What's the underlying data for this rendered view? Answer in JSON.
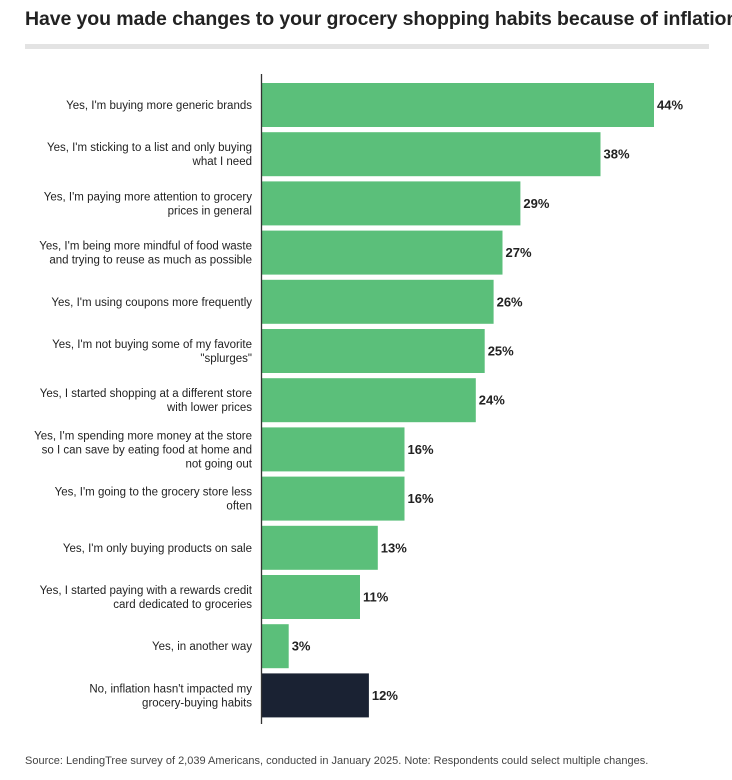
{
  "chart_data": {
    "type": "bar",
    "orientation": "horizontal",
    "title": "Have you made changes to your grocery shopping habits because of inflation?",
    "categories": [
      "Yes, I'm buying more generic brands",
      "Yes, I'm sticking to a list and only buying what I need",
      "Yes, I'm paying more attention to grocery prices in general",
      "Yes, I'm being more mindful of food waste and trying to reuse as much as possible",
      "Yes, I'm using coupons more frequently",
      "Yes, I'm not buying some of my favorite \"splurges\"",
      "Yes, I started shopping at a different store with lower prices",
      "Yes, I'm spending more money at the store so I can save by eating food at home and not going out",
      "Yes, I'm going to the grocery store less often",
      "Yes, I'm only buying products on sale",
      "Yes, I started paying with a rewards credit card dedicated to groceries",
      "Yes, in another way",
      "No, inflation hasn't impacted my grocery-buying habits"
    ],
    "category_lines": [
      [
        "Yes, I'm buying more generic brands"
      ],
      [
        "Yes, I'm sticking to a list and only buying",
        "what I need"
      ],
      [
        "Yes, I'm paying more attention to grocery",
        "prices in general"
      ],
      [
        "Yes, I'm being more mindful of food waste",
        "and trying to reuse as much as possible"
      ],
      [
        "Yes, I'm using coupons more frequently"
      ],
      [
        "Yes, I'm not buying some of my favorite",
        "\"splurges\""
      ],
      [
        "Yes, I started shopping at a different store",
        "with lower prices"
      ],
      [
        "Yes, I'm spending more money at the store",
        "so I can save by eating food at home and",
        "not going out"
      ],
      [
        "Yes, I'm going to the grocery store less",
        "often"
      ],
      [
        "Yes, I'm only buying products on sale"
      ],
      [
        "Yes, I started paying with a rewards credit",
        "card dedicated to groceries"
      ],
      [
        "Yes, in another way"
      ],
      [
        "No, inflation hasn't impacted my",
        "grocery-buying habits"
      ]
    ],
    "values": [
      44,
      38,
      29,
      27,
      26,
      25,
      24,
      16,
      16,
      13,
      11,
      3,
      12
    ],
    "value_labels": [
      "44%",
      "38%",
      "29%",
      "27%",
      "26%",
      "25%",
      "24%",
      "16%",
      "16%",
      "13%",
      "11%",
      "3%",
      "12%"
    ],
    "unit": "%",
    "xlim": [
      0,
      44
    ],
    "grid": false,
    "legend": "none",
    "colors": {
      "yes": "#5bbf7a",
      "no": "#1a2233",
      "axis": "#333333"
    }
  },
  "source": "Source: LendingTree survey of 2,039 Americans, conducted in January 2025. Note: Respondents could select multiple changes."
}
